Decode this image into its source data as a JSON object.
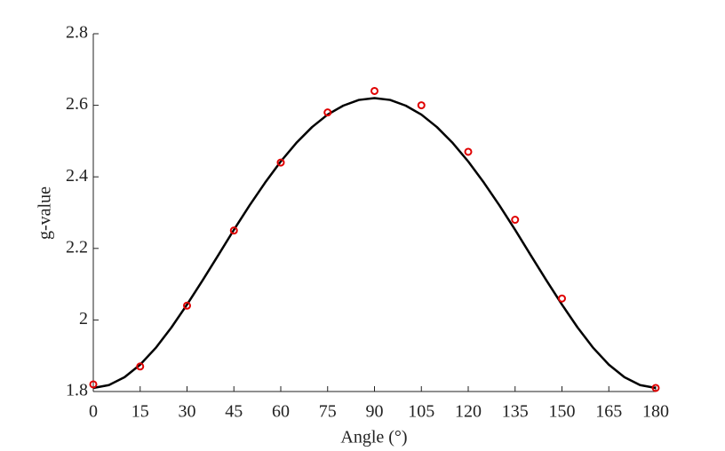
{
  "chart_data": {
    "type": "scatter",
    "xlabel": "Angle (°)",
    "ylabel": "g-value",
    "xlim": [
      0,
      180
    ],
    "xticks": [
      0,
      15,
      30,
      45,
      60,
      75,
      90,
      105,
      120,
      135,
      150,
      165,
      180
    ],
    "ylim": [
      1.8,
      2.8
    ],
    "yticks": [
      1.8,
      2,
      2.2,
      2.4,
      2.6,
      2.8
    ],
    "series": [
      {
        "type": "scatter",
        "color": "#e00000",
        "x": [
          0,
          15,
          30,
          45,
          60,
          75,
          90,
          105,
          120,
          135,
          150,
          180
        ],
        "values": [
          1.82,
          1.87,
          2.04,
          2.25,
          2.44,
          2.58,
          2.64,
          2.6,
          2.47,
          2.28,
          2.06,
          1.81
        ]
      },
      {
        "type": "line",
        "color": "#000000",
        "x": [
          0,
          5,
          10,
          15,
          20,
          25,
          30,
          35,
          40,
          45,
          50,
          55,
          60,
          65,
          70,
          75,
          80,
          85,
          90,
          95,
          100,
          105,
          110,
          115,
          120,
          125,
          130,
          135,
          140,
          145,
          150,
          155,
          160,
          165,
          170,
          175,
          180
        ],
        "values": [
          1.81,
          1.818,
          1.84,
          1.875,
          1.922,
          1.979,
          2.043,
          2.111,
          2.181,
          2.252,
          2.32,
          2.384,
          2.443,
          2.495,
          2.539,
          2.574,
          2.599,
          2.615,
          2.62,
          2.615,
          2.599,
          2.574,
          2.539,
          2.495,
          2.443,
          2.384,
          2.32,
          2.252,
          2.181,
          2.111,
          2.043,
          1.979,
          1.922,
          1.875,
          1.84,
          1.818,
          1.81
        ]
      }
    ]
  }
}
